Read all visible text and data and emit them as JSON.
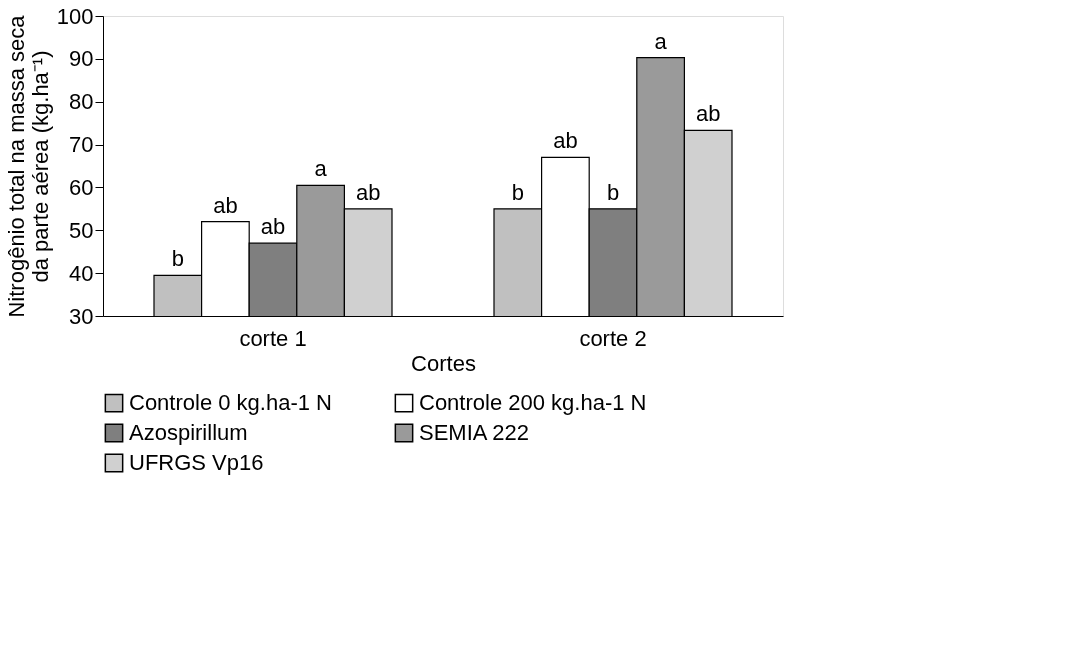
{
  "chart_data": {
    "type": "bar",
    "xlabel": "Cortes",
    "ylabel": "Nitrogênio  total na massa seca da parte aérea (kg.ha⁻¹)",
    "categories": [
      "corte 1",
      "corte 2"
    ],
    "series": [
      {
        "name": "Controle 0 kg.ha-1 N",
        "color": "#c0c0c0",
        "values": [
          39.5,
          55
        ],
        "value_labels": [
          "b",
          "b"
        ]
      },
      {
        "name": "Controle 200 kg.ha-1 N",
        "color": "#ffffff",
        "values": [
          52,
          67
        ],
        "value_labels": [
          "ab",
          "ab"
        ]
      },
      {
        "name": "Azospirillum",
        "color": "#7f7f7f",
        "values": [
          47,
          55
        ],
        "value_labels": [
          "ab",
          "b"
        ]
      },
      {
        "name": "SEMIA 222",
        "color": "#9a9a9a",
        "values": [
          60.5,
          90.3
        ],
        "value_labels": [
          "a",
          "a"
        ]
      },
      {
        "name": "UFRGS Vp16",
        "color": "#d0d0d0",
        "values": [
          55,
          73.3
        ],
        "value_labels": [
          "ab",
          "ab"
        ]
      }
    ],
    "ylim": [
      30,
      100
    ],
    "yticks": [
      30,
      40,
      50,
      60,
      70,
      80,
      90,
      100
    ],
    "grid": false,
    "legend": "bottom"
  }
}
